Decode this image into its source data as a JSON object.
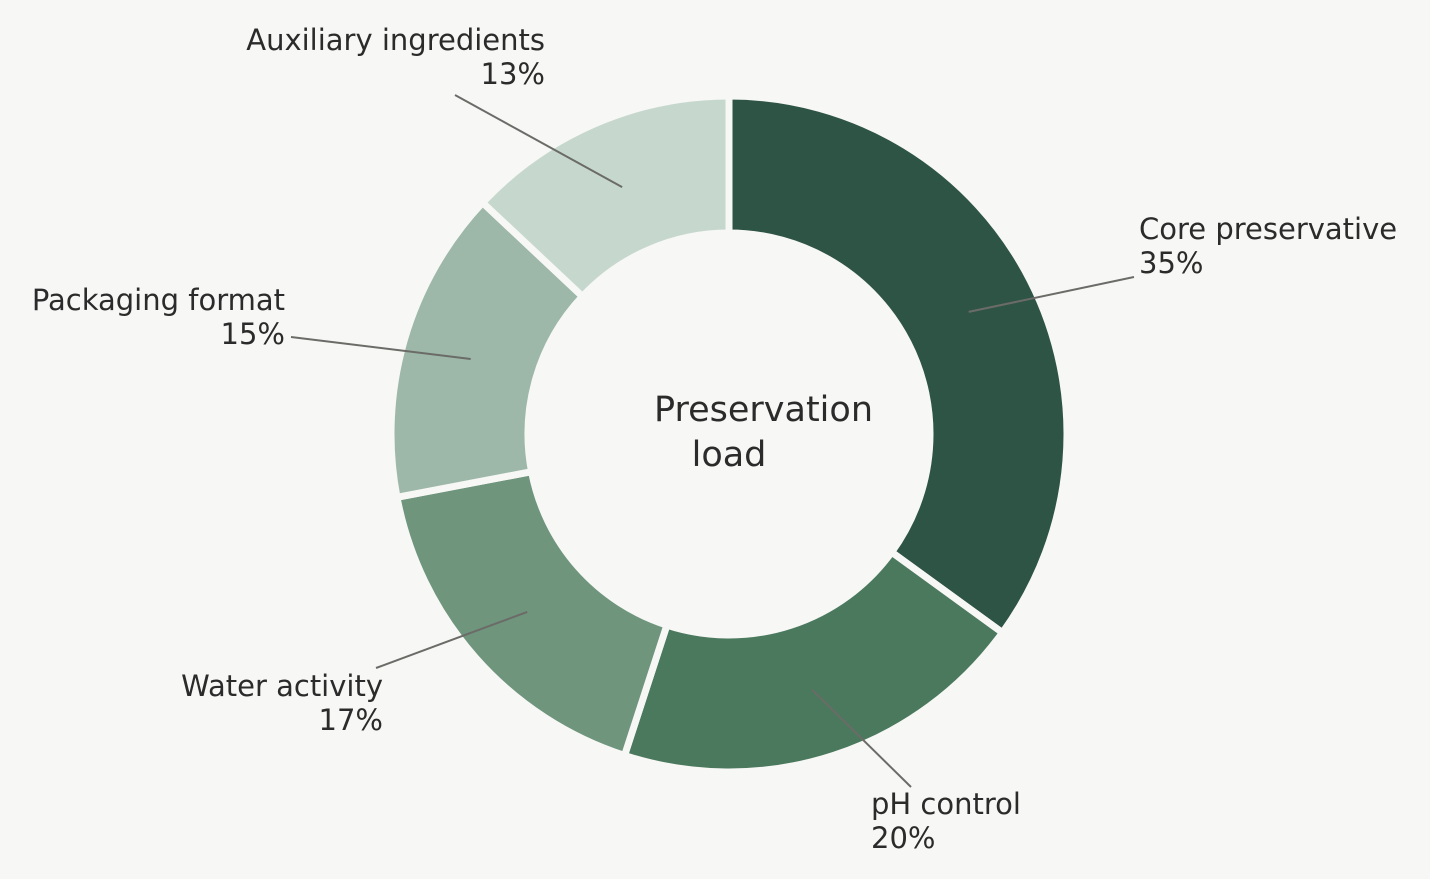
{
  "chart_data": {
    "type": "donut",
    "center_label": "Preservation load",
    "categories": [
      "Core preservative",
      "pH control",
      "Water activity",
      "Packaging format",
      "Auxiliary ingredients"
    ],
    "values": [
      35,
      20,
      17,
      15,
      13
    ],
    "value_labels": [
      "35%",
      "20%",
      "17%",
      "15%",
      "13%"
    ],
    "colors": [
      "#2e5445",
      "#4a795d",
      "#6f957d",
      "#9db8a9",
      "#c6d8ce"
    ]
  }
}
